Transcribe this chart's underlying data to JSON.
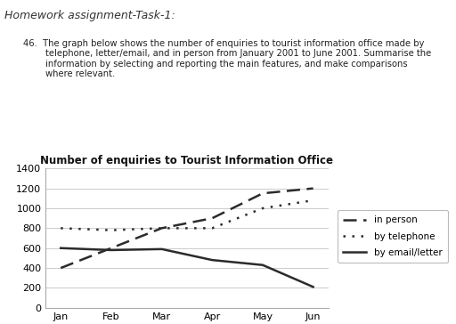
{
  "title": "Number of enquiries to Tourist Information Office",
  "months": [
    "Jan",
    "Feb",
    "Mar",
    "Apr",
    "May",
    "Jun"
  ],
  "in_person": [
    400,
    600,
    800,
    900,
    1150,
    1200
  ],
  "by_telephone": [
    800,
    780,
    800,
    800,
    1000,
    1080
  ],
  "by_email_letter": [
    600,
    580,
    590,
    480,
    430,
    210
  ],
  "ylim": [
    0,
    1400
  ],
  "yticks": [
    0,
    200,
    400,
    600,
    800,
    1000,
    1200,
    1400
  ],
  "legend_labels": [
    "in person",
    "by telephone",
    "by email/letter"
  ],
  "header_text": "Homework assignment-Task-1:",
  "body_text": "46.  The graph below shows the number of enquiries to tourist information office made by\n        telephone, letter/email, and in person from January 2001 to June 2001. Summarise the\n        information by selecting and reporting the main features, and make comparisons\n        where relevant.",
  "line_color": "#2b2b2b",
  "background_color": "#ffffff",
  "grid_color": "#cccccc"
}
